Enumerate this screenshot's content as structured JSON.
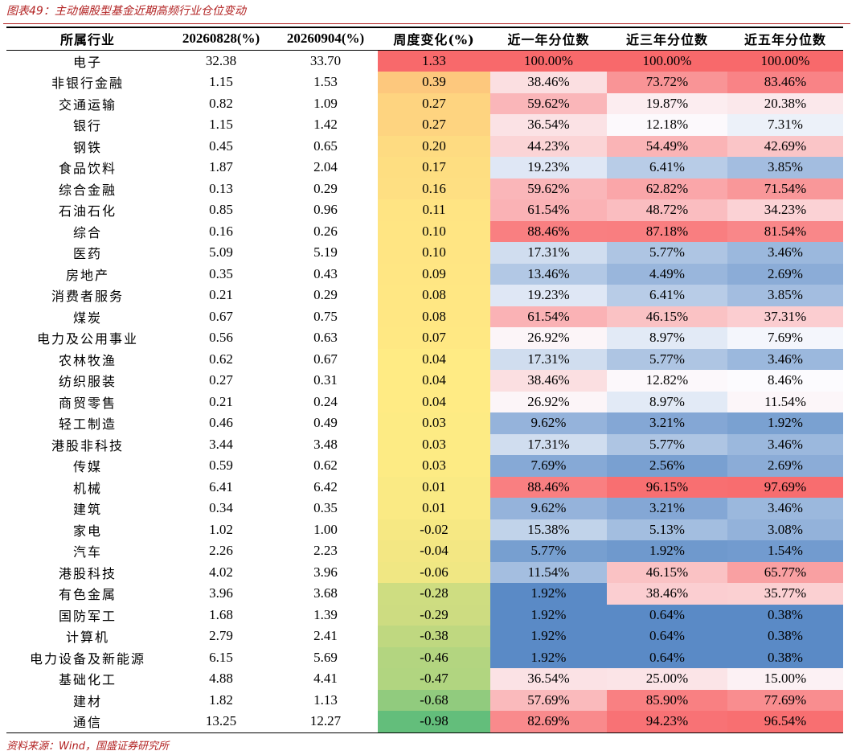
{
  "header": {
    "title": "图表49：主动偏股型基金近期高频行业仓位变动"
  },
  "table": {
    "columns": [
      "所属行业",
      "20260828(%)",
      "20260904(%)",
      "周度变化(%)",
      "近一年分位数",
      "近三年分位数",
      "近五年分位数"
    ],
    "rows": [
      [
        "电子",
        "32.38",
        "33.70",
        "1.33",
        "100.00%",
        "100.00%",
        "100.00%"
      ],
      [
        "非银行金融",
        "1.15",
        "1.53",
        "0.39",
        "38.46%",
        "73.72%",
        "83.46%"
      ],
      [
        "交通运输",
        "0.82",
        "1.09",
        "0.27",
        "59.62%",
        "19.87%",
        "20.38%"
      ],
      [
        "银行",
        "1.15",
        "1.42",
        "0.27",
        "36.54%",
        "12.18%",
        "7.31%"
      ],
      [
        "钢铁",
        "0.45",
        "0.65",
        "0.20",
        "44.23%",
        "54.49%",
        "42.69%"
      ],
      [
        "食品饮料",
        "1.87",
        "2.04",
        "0.17",
        "19.23%",
        "6.41%",
        "3.85%"
      ],
      [
        "综合金融",
        "0.13",
        "0.29",
        "0.16",
        "59.62%",
        "62.82%",
        "71.54%"
      ],
      [
        "石油石化",
        "0.85",
        "0.96",
        "0.11",
        "61.54%",
        "48.72%",
        "34.23%"
      ],
      [
        "综合",
        "0.16",
        "0.26",
        "0.10",
        "88.46%",
        "87.18%",
        "81.54%"
      ],
      [
        "医药",
        "5.09",
        "5.19",
        "0.10",
        "17.31%",
        "5.77%",
        "3.46%"
      ],
      [
        "房地产",
        "0.35",
        "0.43",
        "0.09",
        "13.46%",
        "4.49%",
        "2.69%"
      ],
      [
        "消费者服务",
        "0.21",
        "0.29",
        "0.08",
        "19.23%",
        "6.41%",
        "3.85%"
      ],
      [
        "煤炭",
        "0.67",
        "0.75",
        "0.08",
        "61.54%",
        "46.15%",
        "37.31%"
      ],
      [
        "电力及公用事业",
        "0.56",
        "0.63",
        "0.07",
        "26.92%",
        "8.97%",
        "7.69%"
      ],
      [
        "农林牧渔",
        "0.62",
        "0.67",
        "0.04",
        "17.31%",
        "5.77%",
        "3.46%"
      ],
      [
        "纺织服装",
        "0.27",
        "0.31",
        "0.04",
        "38.46%",
        "12.82%",
        "8.46%"
      ],
      [
        "商贸零售",
        "0.21",
        "0.24",
        "0.04",
        "26.92%",
        "8.97%",
        "11.54%"
      ],
      [
        "轻工制造",
        "0.46",
        "0.49",
        "0.03",
        "9.62%",
        "3.21%",
        "1.92%"
      ],
      [
        "港股非科技",
        "3.44",
        "3.48",
        "0.03",
        "17.31%",
        "5.77%",
        "3.46%"
      ],
      [
        "传媒",
        "0.59",
        "0.62",
        "0.03",
        "7.69%",
        "2.56%",
        "2.69%"
      ],
      [
        "机械",
        "6.41",
        "6.42",
        "0.01",
        "88.46%",
        "96.15%",
        "97.69%"
      ],
      [
        "建筑",
        "0.34",
        "0.35",
        "0.01",
        "9.62%",
        "3.21%",
        "3.46%"
      ],
      [
        "家电",
        "1.02",
        "1.00",
        "-0.02",
        "15.38%",
        "5.13%",
        "3.08%"
      ],
      [
        "汽车",
        "2.26",
        "2.23",
        "-0.04",
        "5.77%",
        "1.92%",
        "1.54%"
      ],
      [
        "港股科技",
        "4.02",
        "3.96",
        "-0.06",
        "11.54%",
        "46.15%",
        "65.77%"
      ],
      [
        "有色金属",
        "3.96",
        "3.68",
        "-0.28",
        "1.92%",
        "38.46%",
        "35.77%"
      ],
      [
        "国防军工",
        "1.68",
        "1.39",
        "-0.29",
        "1.92%",
        "0.64%",
        "0.38%"
      ],
      [
        "计算机",
        "2.79",
        "2.41",
        "-0.38",
        "1.92%",
        "0.64%",
        "0.38%"
      ],
      [
        "电力设备及新能源",
        "6.15",
        "5.69",
        "-0.46",
        "1.92%",
        "0.64%",
        "0.38%"
      ],
      [
        "基础化工",
        "4.88",
        "4.41",
        "-0.47",
        "36.54%",
        "25.00%",
        "15.00%"
      ],
      [
        "建材",
        "1.82",
        "1.13",
        "-0.68",
        "57.69%",
        "85.90%",
        "77.69%"
      ],
      [
        "通信",
        "13.25",
        "12.27",
        "-0.98",
        "82.69%",
        "94.23%",
        "96.54%"
      ]
    ]
  },
  "footer": {
    "source": "资料来源：Wind，国盛证券研究所"
  }
}
